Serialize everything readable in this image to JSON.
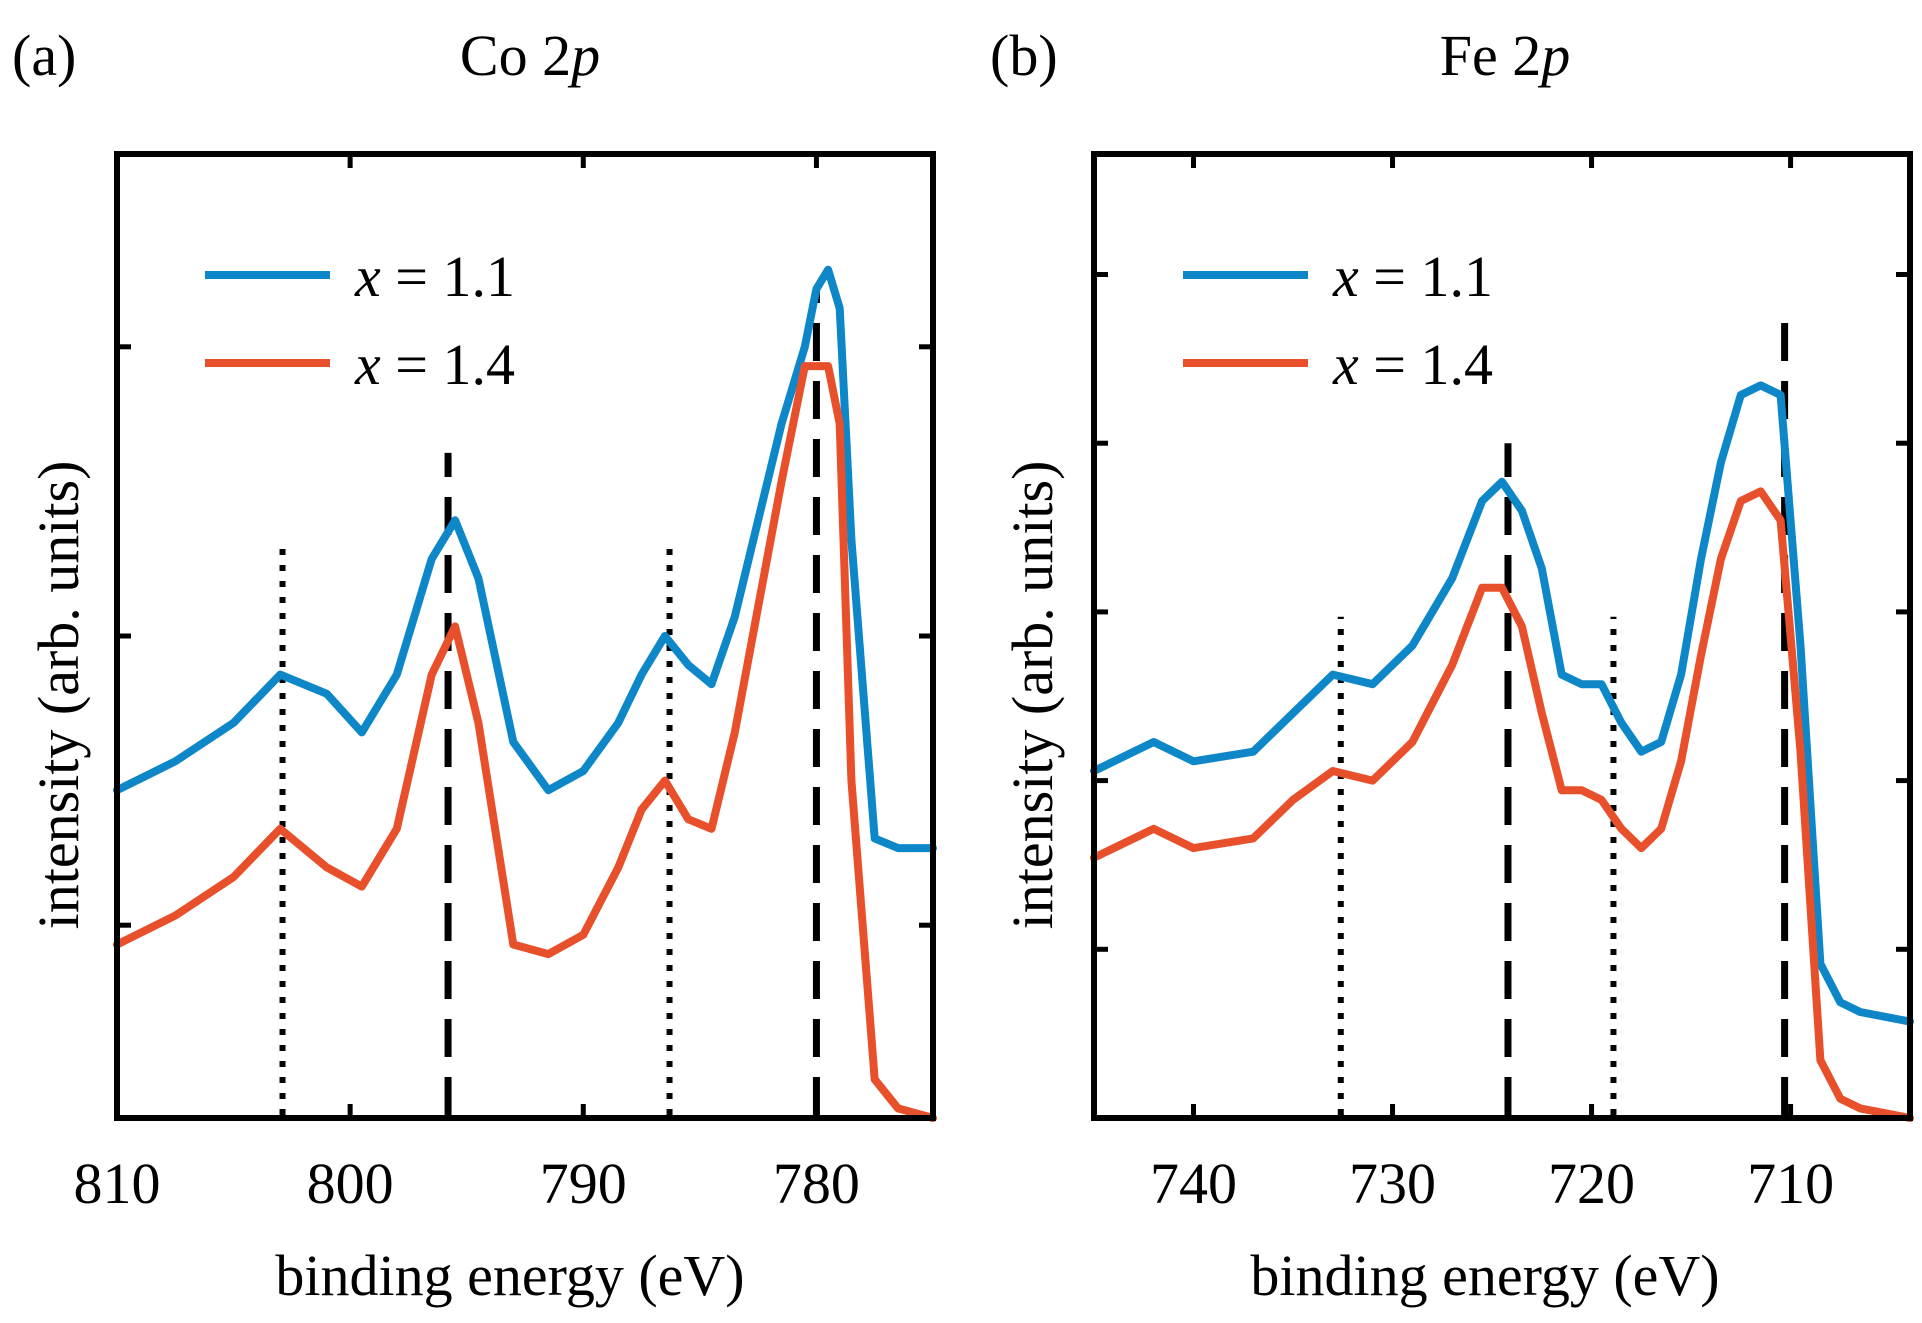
{
  "colors": {
    "x11": "#0e87c9",
    "x14": "#e7502a",
    "axis": "#000000",
    "background": "#ffffff"
  },
  "chart_data": [
    {
      "type": "line",
      "panel_label": "(a)",
      "title_main": "Co 2",
      "title_italic": "p",
      "xlabel": "binding energy (eV)",
      "ylabel": "intensity (arb. units)",
      "xlim": [
        810,
        775
      ],
      "ylim": [
        0,
        1
      ],
      "xticks": [
        810,
        800,
        790,
        780
      ],
      "yticks": [
        0.2,
        0.5,
        0.8
      ],
      "legend_position": "top-left",
      "x": [
        810,
        807.5,
        805,
        803,
        801,
        799.5,
        798,
        796.5,
        795.5,
        794.5,
        793,
        791.5,
        790,
        788.5,
        787.5,
        786.5,
        785.5,
        784.5,
        783.5,
        782.5,
        781.5,
        780.5,
        780,
        779.5,
        779,
        778.5,
        777.5,
        776.5,
        775
      ],
      "series": [
        {
          "name": "x = 1.1",
          "legend_var": "x",
          "legend_eq": " = 1.1",
          "color": "#0e87c9",
          "values": [
            0.34,
            0.37,
            0.41,
            0.46,
            0.44,
            0.4,
            0.46,
            0.58,
            0.62,
            0.56,
            0.39,
            0.34,
            0.36,
            0.41,
            0.46,
            0.5,
            0.47,
            0.45,
            0.52,
            0.62,
            0.72,
            0.8,
            0.86,
            0.88,
            0.84,
            0.6,
            0.29,
            0.28,
            0.28
          ]
        },
        {
          "name": "x = 1.4",
          "legend_var": "x",
          "legend_eq": " = 1.4",
          "color": "#e7502a",
          "values": [
            0.18,
            0.21,
            0.25,
            0.3,
            0.26,
            0.24,
            0.3,
            0.46,
            0.51,
            0.41,
            0.18,
            0.17,
            0.19,
            0.26,
            0.32,
            0.35,
            0.31,
            0.3,
            0.4,
            0.53,
            0.66,
            0.78,
            0.78,
            0.78,
            0.72,
            0.35,
            0.04,
            0.01,
            0.0
          ]
        }
      ],
      "reference_lines": [
        {
          "x": 802.9,
          "style": "dotted",
          "y_top": 0.6
        },
        {
          "x": 795.8,
          "style": "dashed",
          "y_top": 0.69
        },
        {
          "x": 786.3,
          "style": "dotted",
          "y_top": 0.6
        },
        {
          "x": 780.0,
          "style": "dashed",
          "y_top": 0.86
        }
      ]
    },
    {
      "type": "line",
      "panel_label": "(b)",
      "title_main": "Fe 2",
      "title_italic": "p",
      "xlabel": "binding energy (eV)",
      "ylabel": "intensity (arb. units)",
      "xlim": [
        745,
        704
      ],
      "ylim": [
        0,
        1
      ],
      "xticks": [
        740,
        730,
        720,
        710
      ],
      "yticks": [
        0.175,
        0.35,
        0.525,
        0.7,
        0.875
      ],
      "legend_position": "top-left",
      "x": [
        745,
        742,
        740,
        737,
        735,
        733,
        731,
        729,
        727,
        725.5,
        724.5,
        723.5,
        722.5,
        721.5,
        720.5,
        719.5,
        718.5,
        717.5,
        716.5,
        715.5,
        714.5,
        713.5,
        712.5,
        711.5,
        710.5,
        709.5,
        708.5,
        707.5,
        706.5,
        704
      ],
      "series": [
        {
          "name": "x = 1.1",
          "legend_var": "x",
          "legend_eq": " = 1.1",
          "color": "#0e87c9",
          "values": [
            0.36,
            0.39,
            0.37,
            0.38,
            0.42,
            0.46,
            0.45,
            0.49,
            0.56,
            0.64,
            0.66,
            0.63,
            0.57,
            0.46,
            0.45,
            0.45,
            0.41,
            0.38,
            0.39,
            0.46,
            0.58,
            0.68,
            0.75,
            0.76,
            0.75,
            0.49,
            0.16,
            0.12,
            0.11,
            0.1
          ]
        },
        {
          "name": "x = 1.4",
          "legend_var": "x",
          "legend_eq": " = 1.4",
          "color": "#e7502a",
          "values": [
            0.27,
            0.3,
            0.28,
            0.29,
            0.33,
            0.36,
            0.35,
            0.39,
            0.47,
            0.55,
            0.55,
            0.51,
            0.42,
            0.34,
            0.34,
            0.33,
            0.3,
            0.28,
            0.3,
            0.37,
            0.48,
            0.58,
            0.64,
            0.65,
            0.62,
            0.38,
            0.06,
            0.02,
            0.01,
            0.0
          ]
        }
      ],
      "reference_lines": [
        {
          "x": 732.6,
          "style": "dotted",
          "y_top": 0.52
        },
        {
          "x": 724.2,
          "style": "dashed",
          "y_top": 0.7
        },
        {
          "x": 718.9,
          "style": "dotted",
          "y_top": 0.52
        },
        {
          "x": 710.3,
          "style": "dashed",
          "y_top": 0.84
        }
      ]
    }
  ]
}
